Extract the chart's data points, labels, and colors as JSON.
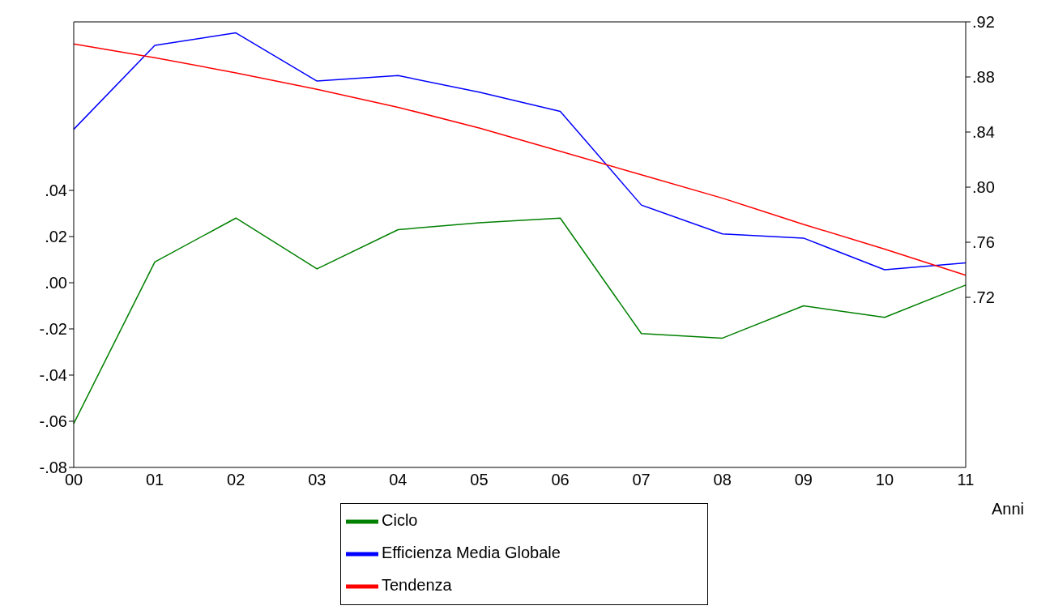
{
  "chart_data": {
    "type": "line",
    "xlabel": "Anni",
    "categories": [
      "00",
      "01",
      "02",
      "03",
      "04",
      "05",
      "06",
      "07",
      "08",
      "09",
      "10",
      "11"
    ],
    "series": [
      {
        "name": "Efficienza Media Globale",
        "color": "#0000ff",
        "axis": "y2",
        "values": [
          0.842,
          0.903,
          0.912,
          0.877,
          0.881,
          0.869,
          0.855,
          0.787,
          0.766,
          0.763,
          0.74,
          0.745
        ]
      },
      {
        "name": "Tendenza",
        "color": "#ff0000",
        "axis": "y2",
        "values": [
          0.904,
          0.894,
          0.883,
          0.871,
          0.858,
          0.843,
          0.826,
          0.809,
          0.792,
          0.773,
          0.755,
          0.736
        ]
      },
      {
        "name": "Ciclo",
        "color": "#008000",
        "values": [
          -0.061,
          0.009,
          0.028,
          0.006,
          0.023,
          0.026,
          0.028,
          -0.022,
          -0.024,
          -0.01,
          -0.015,
          -0.001
        ]
      }
    ],
    "ylim": [
      -0.08,
      0.113
    ],
    "yticks": [
      {
        "value": -0.08,
        "label": "-.08"
      },
      {
        "value": -0.06,
        "label": "-.06"
      },
      {
        "value": -0.04,
        "label": "-.04"
      },
      {
        "value": -0.02,
        "label": "-.02"
      },
      {
        "value": 0,
        "label": ".00"
      },
      {
        "value": 0.02,
        "label": ".02"
      },
      {
        "value": 0.04,
        "label": ".04"
      }
    ],
    "y2lim": [
      0.5965,
      0.92
    ],
    "y2ticks": [
      {
        "value": 0.72,
        "label": ".72"
      },
      {
        "value": 0.76,
        "label": ".76"
      },
      {
        "value": 0.8,
        "label": ".80"
      },
      {
        "value": 0.84,
        "label": ".84"
      },
      {
        "value": 0.88,
        "label": ".88"
      },
      {
        "value": 0.92,
        "label": ".92"
      }
    ],
    "grid": false,
    "legend": "bottom",
    "marker": "none",
    "line_style": "solid"
  }
}
